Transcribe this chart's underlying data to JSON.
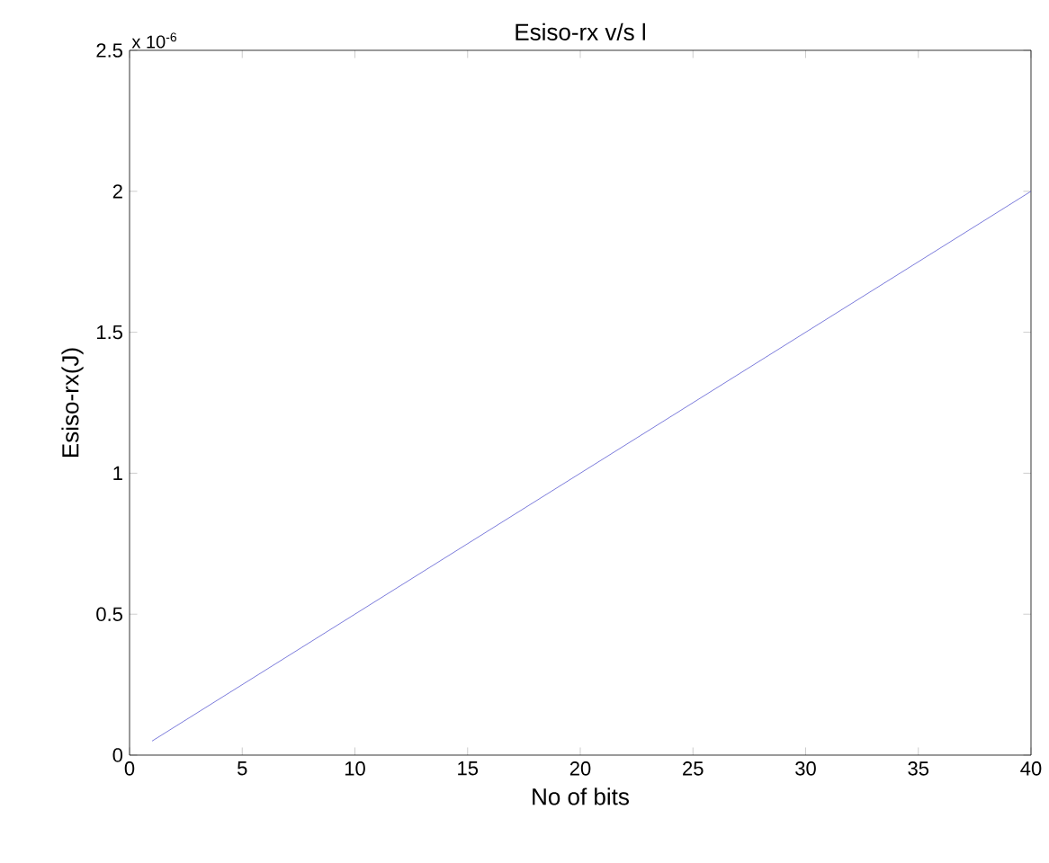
{
  "chart_data": {
    "type": "line",
    "title": "Esiso-rx v/s l",
    "xlabel": "No of bits",
    "ylabel": "Esiso-rx(J)",
    "annotations": [
      "x 10$^{-6}$"
    ],
    "x": [
      1,
      40
    ],
    "series": [
      {
        "color": "#5a5ad2",
        "values": [
          0.05,
          2
        ]
      }
    ],
    "xlim": [
      0,
      40
    ],
    "xticks": [
      0,
      5,
      10,
      15,
      20,
      25,
      30,
      35,
      40
    ],
    "ylim": [
      0,
      2.5
    ],
    "yticks": [
      0,
      0.5,
      1,
      1.5,
      2,
      2.5
    ],
    "marker": "none",
    "line_style": "solid"
  }
}
